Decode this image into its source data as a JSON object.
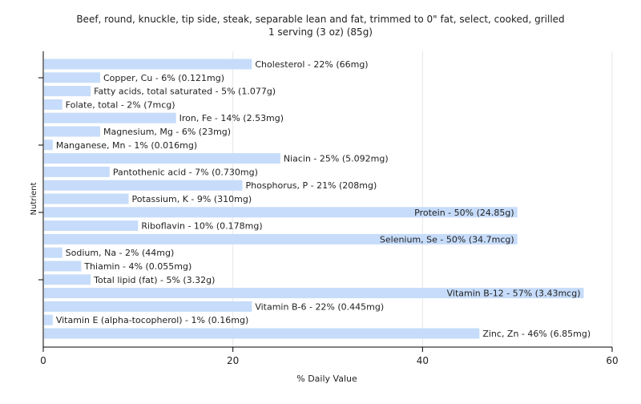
{
  "chart_data": {
    "type": "bar",
    "orientation": "horizontal",
    "title": "Beef, round, knuckle, tip side, steak, separable lean and fat, trimmed to 0\" fat, select, cooked, grilled",
    "subtitle": "1 serving (3 oz) (85g)",
    "xlabel": "% Daily Value",
    "ylabel": "Nutrient",
    "xlim": [
      0,
      60
    ],
    "xticks": [
      0,
      20,
      40,
      60
    ],
    "grid": true,
    "bar_color": "#c6dcfa",
    "categories": [
      "Cholesterol",
      "Copper, Cu",
      "Fatty acids, total saturated",
      "Folate, total",
      "Iron, Fe",
      "Magnesium, Mg",
      "Manganese, Mn",
      "Niacin",
      "Pantothenic acid",
      "Phosphorus, P",
      "Potassium, K",
      "Protein",
      "Riboflavin",
      "Selenium, Se",
      "Sodium, Na",
      "Thiamin",
      "Total lipid (fat)",
      "Vitamin B-12",
      "Vitamin B-6",
      "Vitamin E (alpha-tocopherol)",
      "Zinc, Zn"
    ],
    "values": [
      22,
      6,
      5,
      2,
      14,
      6,
      1,
      25,
      7,
      21,
      9,
      50,
      10,
      50,
      2,
      4,
      5,
      57,
      22,
      1,
      46
    ],
    "labels": [
      "Cholesterol - 22% (66mg)",
      "Copper, Cu - 6% (0.121mg)",
      "Fatty acids, total saturated - 5% (1.077g)",
      "Folate, total - 2% (7mcg)",
      "Iron, Fe - 14% (2.53mg)",
      "Magnesium, Mg - 6% (23mg)",
      "Manganese, Mn - 1% (0.016mg)",
      "Niacin - 25% (5.092mg)",
      "Pantothenic acid - 7% (0.730mg)",
      "Phosphorus, P - 21% (208mg)",
      "Potassium, K - 9% (310mg)",
      "Protein - 50% (24.85g)",
      "Riboflavin - 10% (0.178mg)",
      "Selenium, Se - 50% (34.7mcg)",
      "Sodium, Na - 2% (44mg)",
      "Thiamin - 4% (0.055mg)",
      "Total lipid (fat) - 5% (3.32g)",
      "Vitamin B-12 - 57% (3.43mcg)",
      "Vitamin B-6 - 22% (0.445mg)",
      "Vitamin E (alpha-tocopherol) - 1% (0.16mg)",
      "Zinc, Zn - 46% (6.85mg)"
    ],
    "label_inside": [
      false,
      false,
      false,
      false,
      false,
      false,
      false,
      false,
      false,
      false,
      false,
      true,
      false,
      true,
      false,
      false,
      false,
      true,
      false,
      false,
      false
    ]
  }
}
